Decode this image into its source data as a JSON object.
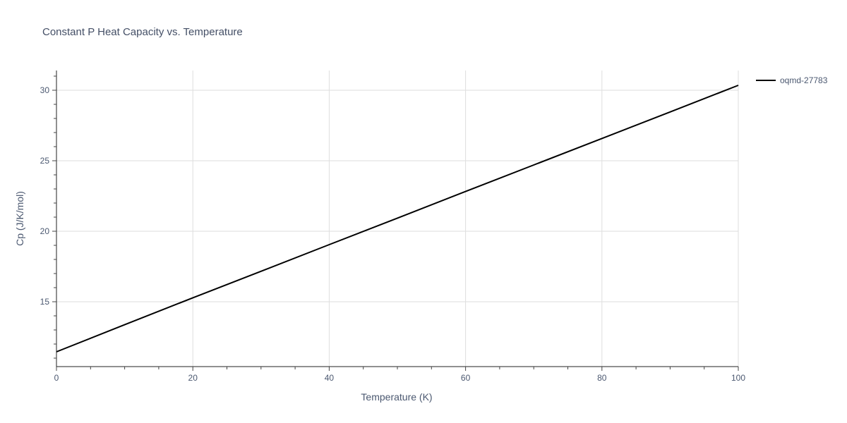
{
  "chart_data": {
    "type": "line",
    "title": "Constant P Heat Capacity vs. Temperature",
    "xlabel": "Temperature (K)",
    "ylabel": "Cp (J/K/mol)",
    "xlim": [
      0,
      100
    ],
    "ylim": [
      10.4,
      31.4
    ],
    "x_ticks": [
      0,
      20,
      40,
      60,
      80,
      100
    ],
    "y_ticks": [
      15,
      20,
      25,
      30
    ],
    "grid": true,
    "legend_position": "top-right",
    "series": [
      {
        "name": "oqmd-27783",
        "color": "#000000",
        "x": [
          0,
          10,
          20,
          30,
          40,
          50,
          60,
          70,
          80,
          90,
          100
        ],
        "y": [
          11.45,
          13.37,
          15.28,
          17.16,
          19.05,
          20.93,
          22.82,
          24.7,
          26.58,
          28.46,
          30.35
        ]
      }
    ]
  }
}
